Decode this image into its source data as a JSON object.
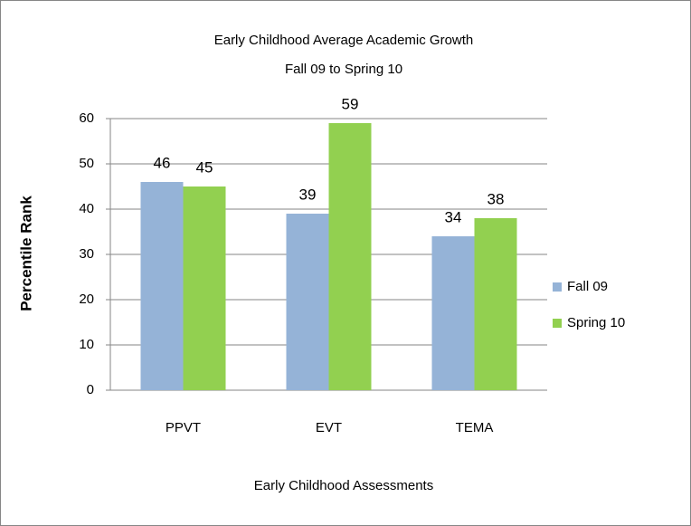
{
  "chart_data": {
    "type": "bar",
    "title": "Early Childhood Average Academic Growth",
    "subtitle": "Fall 09 to Spring 10",
    "x_label": "Early Childhood Assessments",
    "y_label": "Percentile Rank",
    "categories": [
      "PPVT",
      "EVT",
      "TEMA"
    ],
    "series": [
      {
        "name": "Fall 09",
        "color": "#95b3d7",
        "values": [
          46,
          39,
          34
        ]
      },
      {
        "name": "Spring 10",
        "color": "#92d050",
        "values": [
          45,
          59,
          38
        ]
      }
    ],
    "ylim": [
      0,
      60
    ],
    "yticks": [
      0,
      10,
      20,
      30,
      40,
      50,
      60
    ],
    "grid": true,
    "legend": "right"
  }
}
